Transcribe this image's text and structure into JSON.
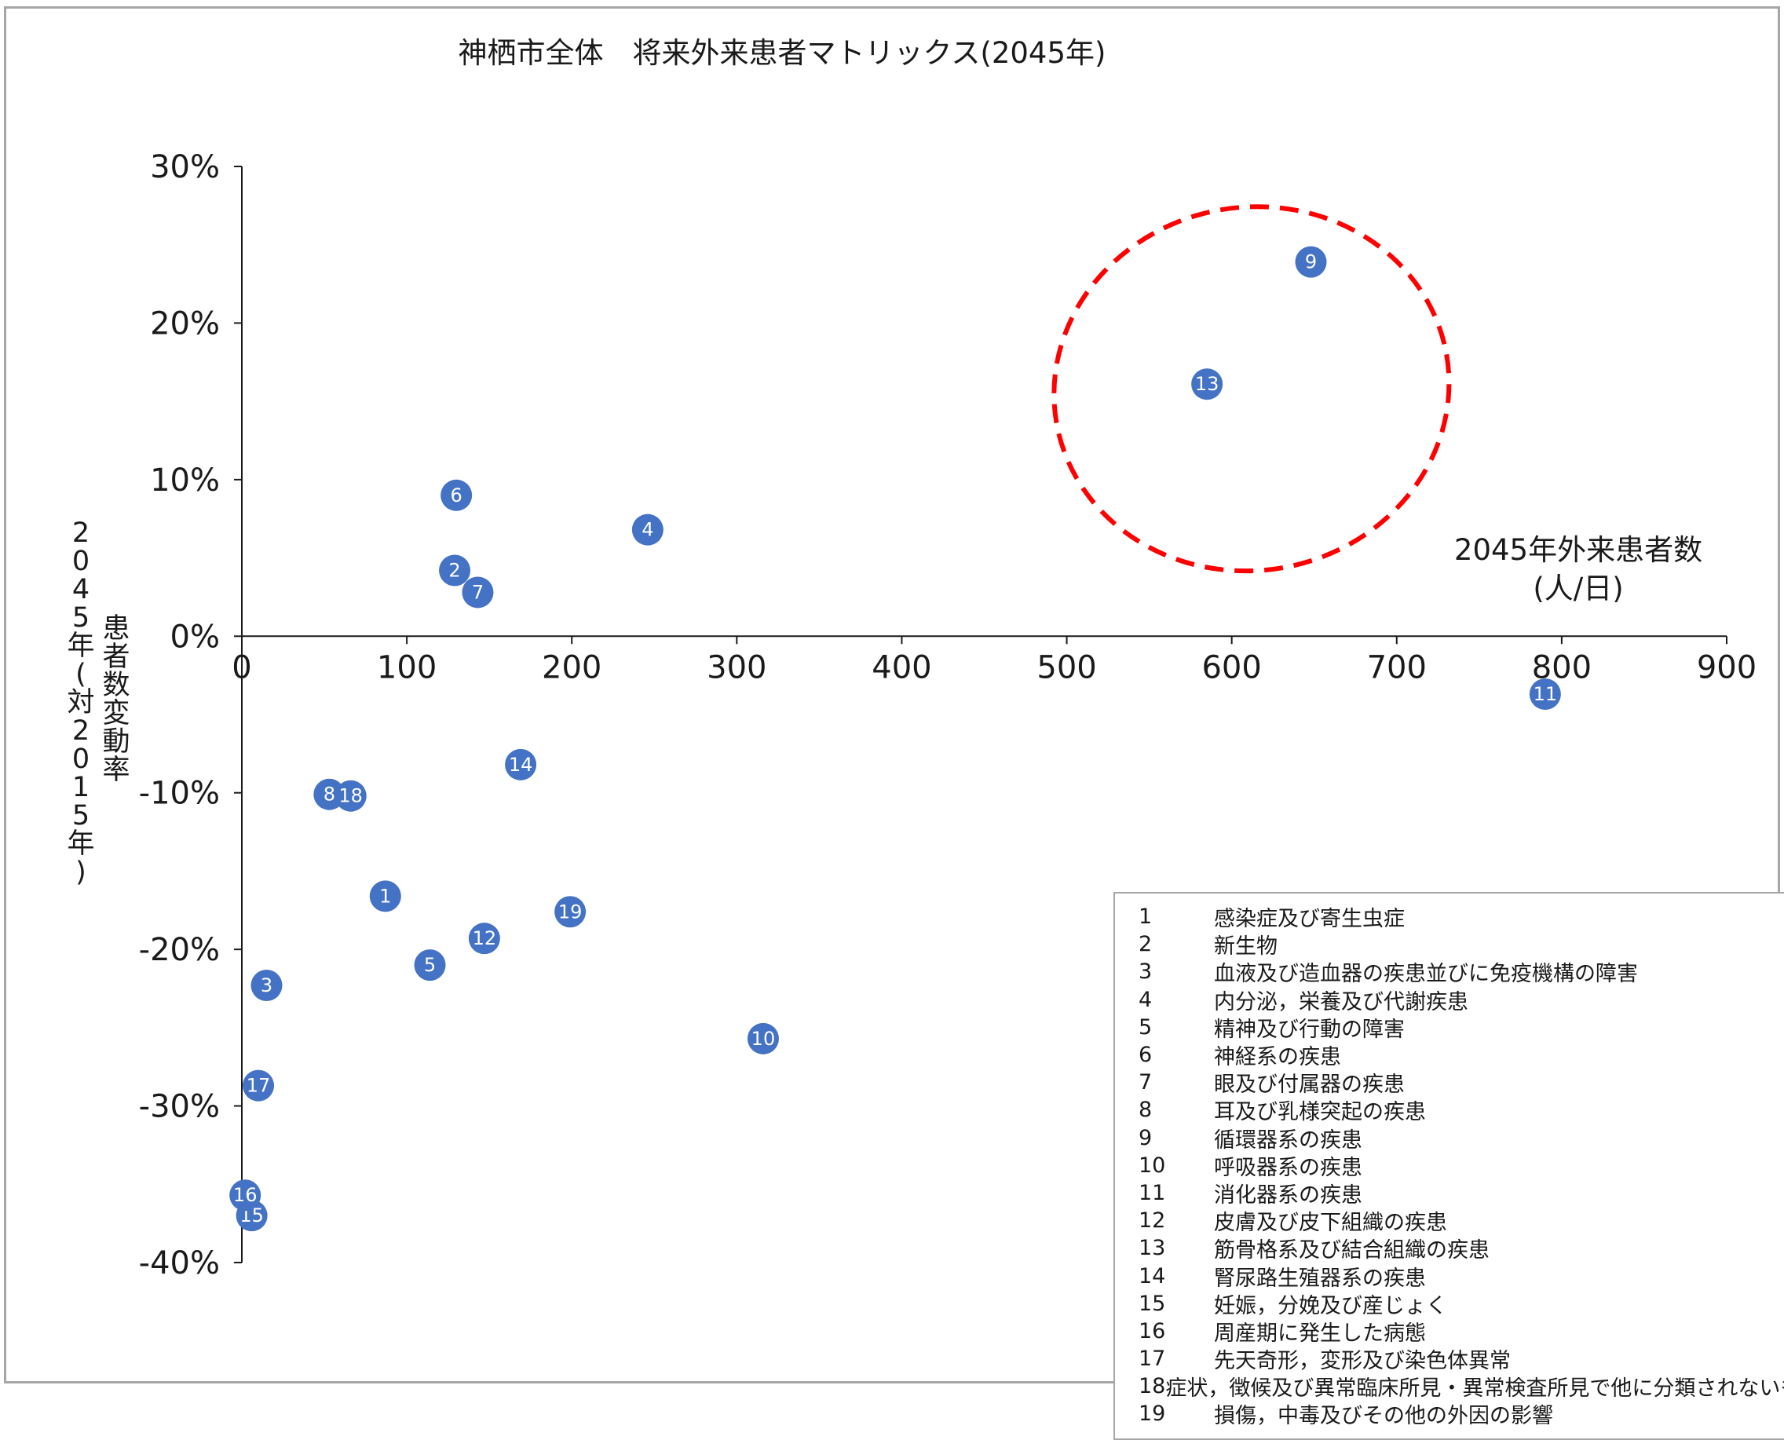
{
  "chart_data": {
    "type": "scatter",
    "title": "神栖市全体　将来外来患者マトリックス(2045年)",
    "xlabel": "2045年外来患者数",
    "xlabel_unit": "(人/日)",
    "ylabel_main": "患者数変動率",
    "ylabel_sub": [
      "2",
      "0",
      "4",
      "5",
      "年",
      "(",
      "対",
      "2",
      "0",
      "1",
      "5",
      "年",
      ")"
    ],
    "xlim": [
      0,
      900
    ],
    "ylim": [
      -40,
      30
    ],
    "x_ticks": [
      {
        "v": 0,
        "label": "0"
      },
      {
        "v": 100,
        "label": "100"
      },
      {
        "v": 200,
        "label": "200"
      },
      {
        "v": 300,
        "label": "300"
      },
      {
        "v": 400,
        "label": "400"
      },
      {
        "v": 500,
        "label": "500"
      },
      {
        "v": 600,
        "label": "600"
      },
      {
        "v": 700,
        "label": "700"
      },
      {
        "v": 800,
        "label": "800"
      },
      {
        "v": 900,
        "label": "900"
      }
    ],
    "y_ticks": [
      {
        "v": 30,
        "label": "30%"
      },
      {
        "v": 20,
        "label": "20%"
      },
      {
        "v": 10,
        "label": "10%"
      },
      {
        "v": 0,
        "label": "0%"
      },
      {
        "v": -10,
        "label": "-10%"
      },
      {
        "v": -20,
        "label": "-20%"
      },
      {
        "v": -30,
        "label": "-30%"
      },
      {
        "v": -40,
        "label": "-40%"
      }
    ],
    "points": [
      {
        "id": "1",
        "x": 87,
        "y": -16.6
      },
      {
        "id": "2",
        "x": 129,
        "y": 4.2
      },
      {
        "id": "3",
        "x": 15,
        "y": -22.3
      },
      {
        "id": "4",
        "x": 246,
        "y": 6.8
      },
      {
        "id": "5",
        "x": 114,
        "y": -21.0
      },
      {
        "id": "6",
        "x": 130,
        "y": 9.0
      },
      {
        "id": "7",
        "x": 143,
        "y": 2.8
      },
      {
        "id": "8",
        "x": 53,
        "y": -10.1
      },
      {
        "id": "9",
        "x": 648,
        "y": 23.9
      },
      {
        "id": "10",
        "x": 316,
        "y": -25.7
      },
      {
        "id": "11",
        "x": 790,
        "y": -3.7
      },
      {
        "id": "12",
        "x": 147,
        "y": -19.3
      },
      {
        "id": "13",
        "x": 585,
        "y": 16.1
      },
      {
        "id": "14",
        "x": 169,
        "y": -8.2
      },
      {
        "id": "15",
        "x": 6,
        "y": -37.0
      },
      {
        "id": "16",
        "x": 2,
        "y": -35.7
      },
      {
        "id": "17",
        "x": 10,
        "y": -28.7
      },
      {
        "id": "18",
        "x": 66,
        "y": -10.2
      },
      {
        "id": "19",
        "x": 199,
        "y": -17.6
      }
    ],
    "point_color": "#4472c4",
    "highlight": {
      "shape": "dashed-ellipse",
      "color": "#ff0000",
      "cx": 612,
      "cy": 15.8,
      "rx": 120,
      "ry": 11.6,
      "contains": [
        "9",
        "13"
      ]
    },
    "legend_placement": "bottom-right",
    "legend": [
      {
        "num": "1",
        "name": "感染症及び寄生虫症"
      },
      {
        "num": "2",
        "name": "新生物"
      },
      {
        "num": "3",
        "name": "血液及び造血器の疾患並びに免疫機構の障害"
      },
      {
        "num": "4",
        "name": "内分泌，栄養及び代謝疾患"
      },
      {
        "num": "5",
        "name": "精神及び行動の障害"
      },
      {
        "num": "6",
        "name": "神経系の疾患"
      },
      {
        "num": "7",
        "name": "眼及び付属器の疾患"
      },
      {
        "num": "8",
        "name": "耳及び乳様突起の疾患"
      },
      {
        "num": "9",
        "name": "循環器系の疾患"
      },
      {
        "num": "10",
        "name": "呼吸器系の疾患"
      },
      {
        "num": "11",
        "name": "消化器系の疾患"
      },
      {
        "num": "12",
        "name": "皮膚及び皮下組織の疾患"
      },
      {
        "num": "13",
        "name": "筋骨格系及び結合組織の疾患"
      },
      {
        "num": "14",
        "name": "腎尿路生殖器系の疾患"
      },
      {
        "num": "15",
        "name": "妊娠，分娩及び産じょく"
      },
      {
        "num": "16",
        "name": "周産期に発生した病態"
      },
      {
        "num": "17",
        "name": "先天奇形，変形及び染色体異常"
      },
      {
        "num": "18",
        "name": "症状，徴候及び異常臨床所見・異常検査所見で他に分類されないもの"
      },
      {
        "num": "19",
        "name": "損傷，中毒及びその他の外因の影響"
      }
    ]
  }
}
